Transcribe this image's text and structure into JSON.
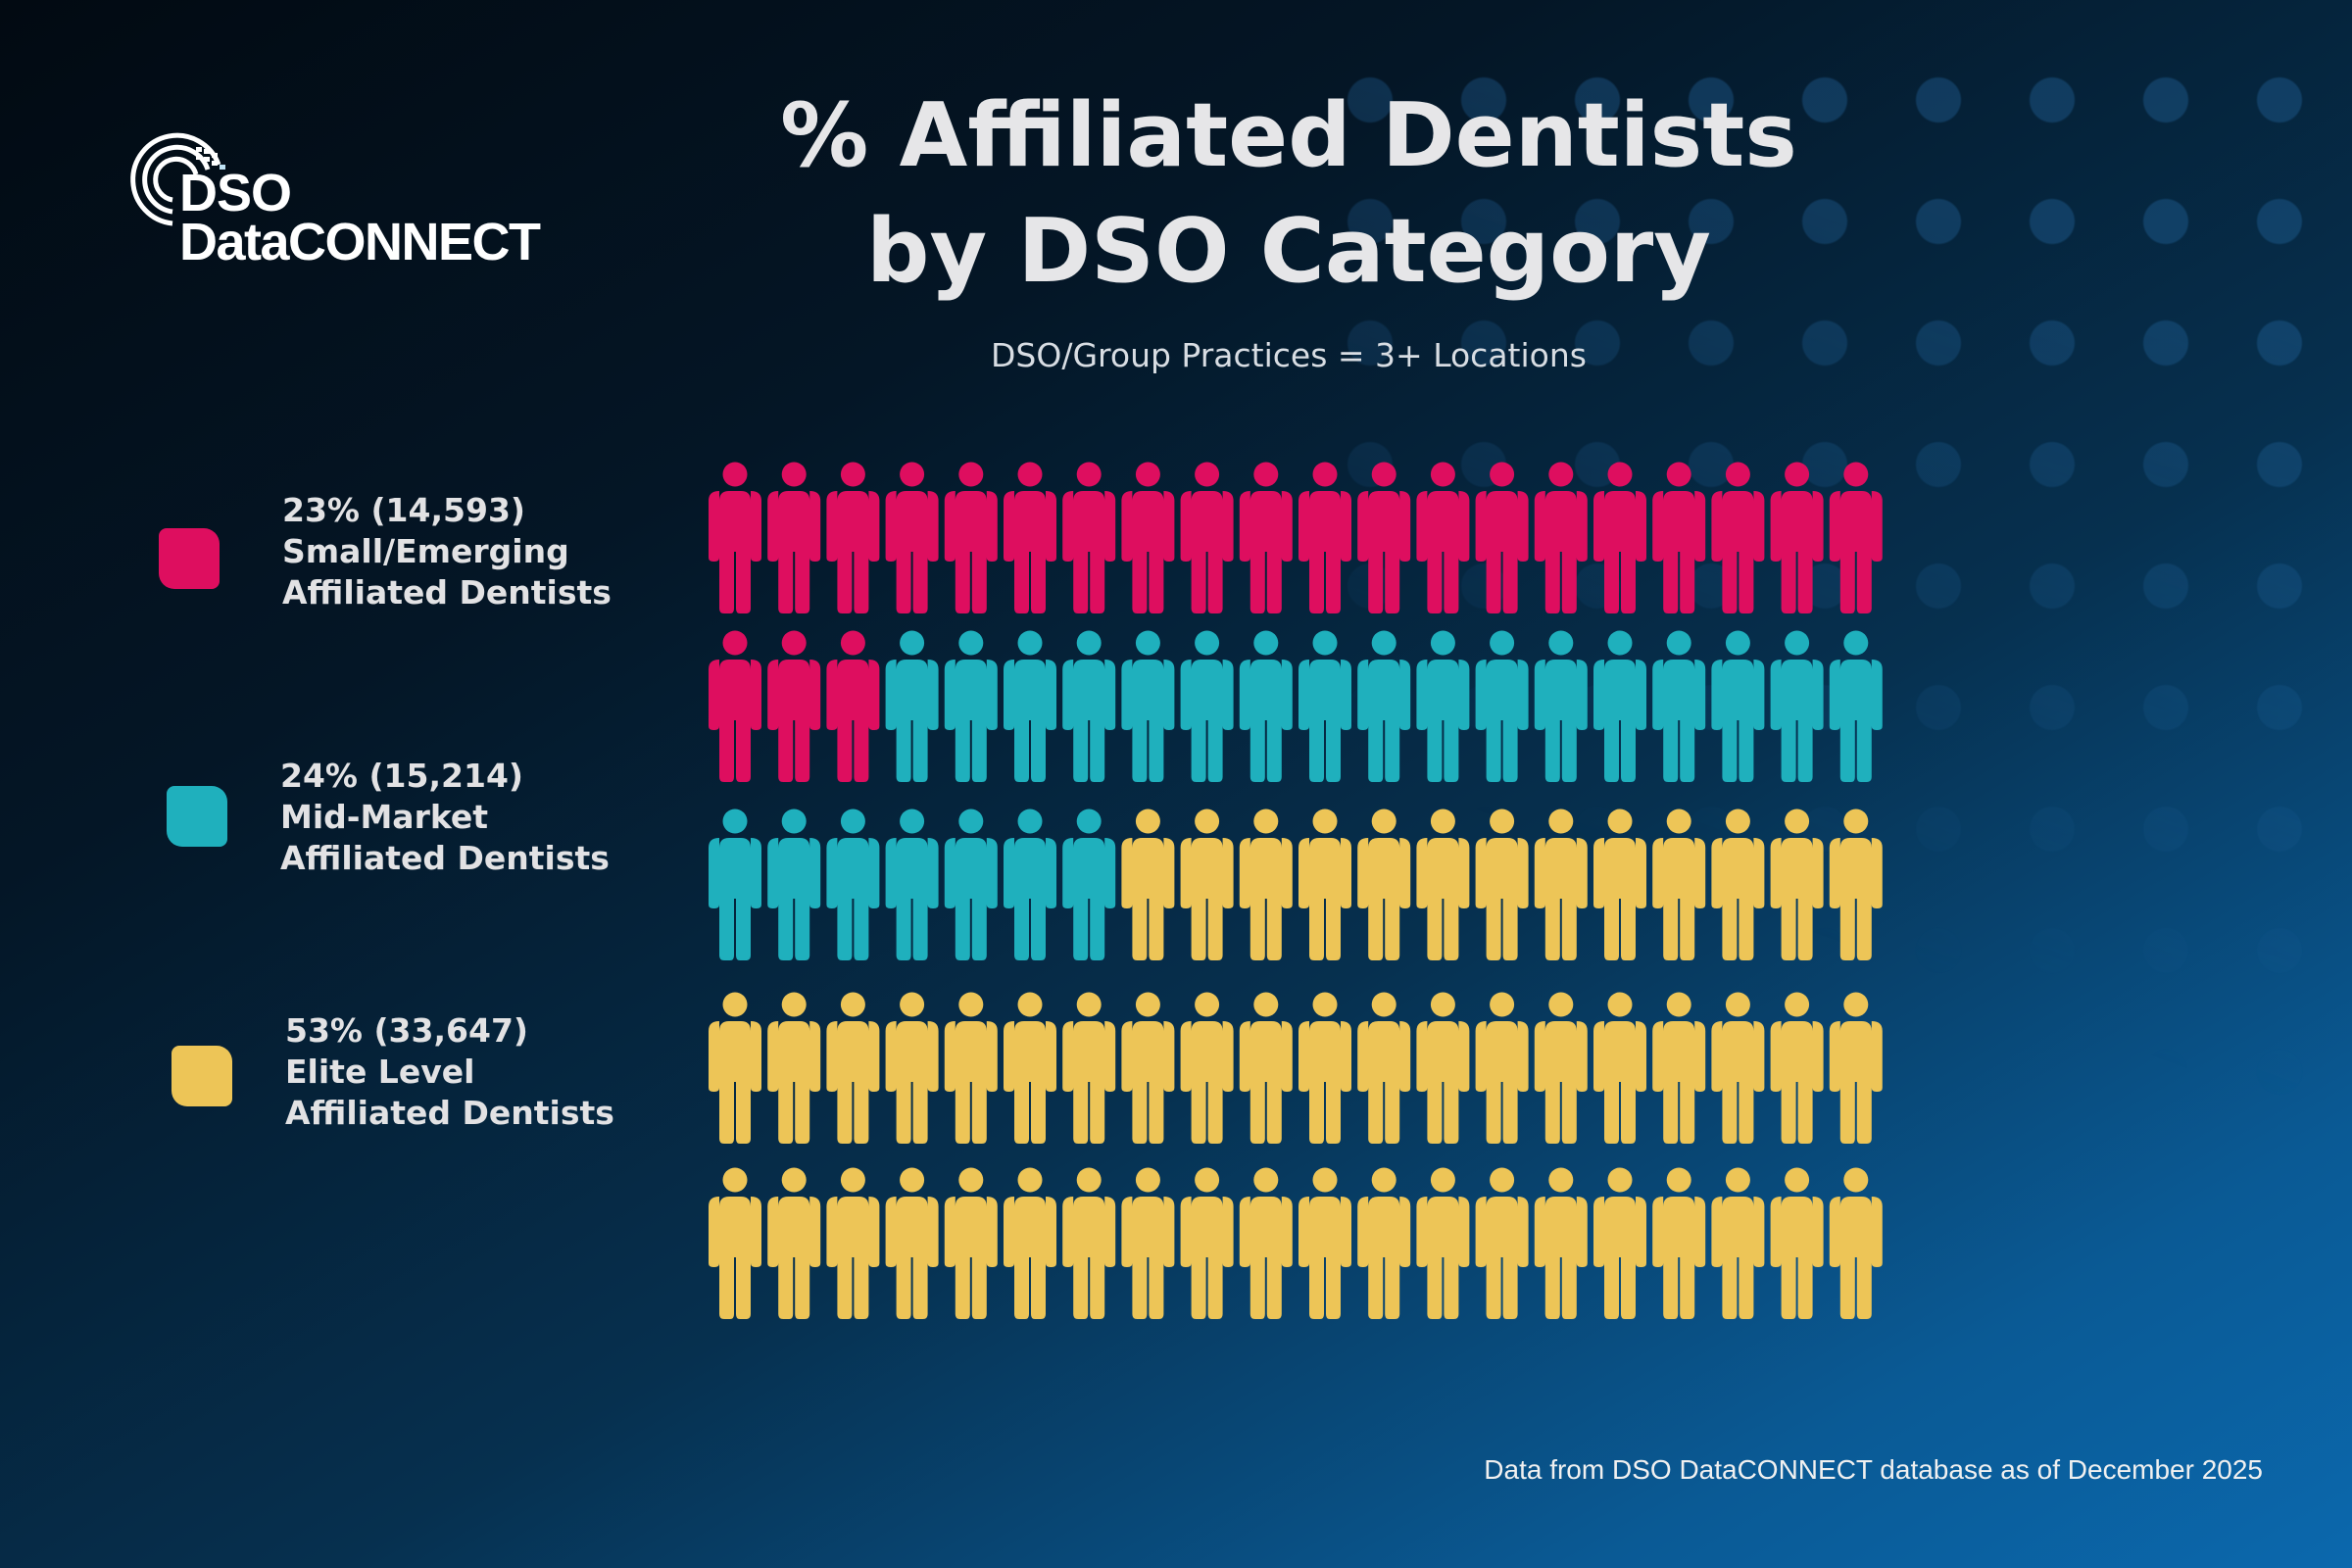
{
  "logo": {
    "line1": "DSO",
    "line2": "DataCONNECT"
  },
  "header": {
    "title_line1": "% Affiliated Dentists",
    "title_line2": "by DSO Category",
    "subtitle": "DSO/Group Practices = 3+ Locations"
  },
  "legend": [
    {
      "stat": "23% (14,593)",
      "line1": "Small/Emerging",
      "line2": "Affiliated Dentists",
      "color": "#de0e5f"
    },
    {
      "stat": "24% (15,214)",
      "line1": "Mid-Market",
      "line2": "Affiliated Dentists",
      "color": "#1fb0bd"
    },
    {
      "stat": "53% (33,647)",
      "line1": "Elite Level",
      "line2": "Affiliated Dentists",
      "color": "#edc557"
    }
  ],
  "footer": "Data from DSO DataCONNECT database as of December 2025",
  "chart_data": {
    "type": "pictogram",
    "title": "% Affiliated Dentists by DSO Category",
    "subtitle": "DSO/Group Practices = 3+ Locations",
    "categories": [
      "Small/Emerging Affiliated Dentists",
      "Mid-Market Affiliated Dentists",
      "Elite Level Affiliated Dentists"
    ],
    "values": [
      23,
      24,
      53
    ],
    "counts": [
      14593,
      15214,
      33647
    ],
    "unit": "percent",
    "total_icons": 100,
    "icons_per_row": 20,
    "colors": [
      "#de0e5f",
      "#1fb0bd",
      "#edc557"
    ],
    "legend_position": "left"
  }
}
